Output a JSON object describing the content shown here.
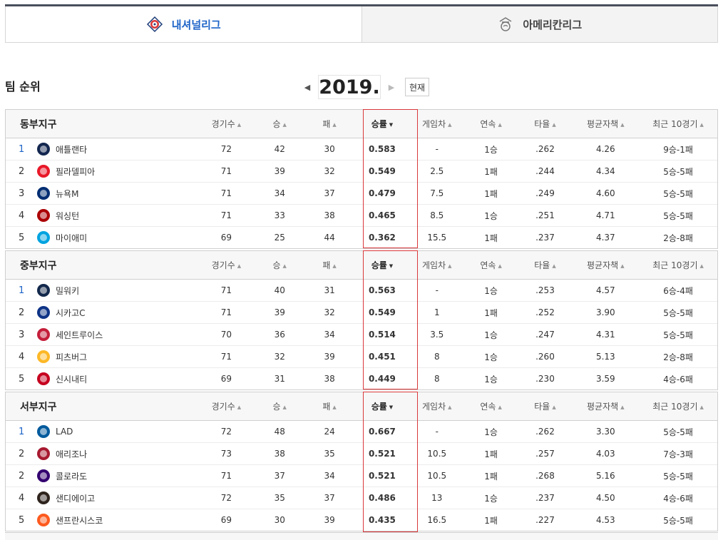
{
  "league_tabs": [
    {
      "label": "내셔널리그",
      "active": true,
      "icon": "national-league-logo-icon"
    },
    {
      "label": "아메리칸리그",
      "active": false,
      "icon": "american-league-logo-icon"
    }
  ],
  "section_title": "팀 순위",
  "year_nav": {
    "year": "2019.",
    "now_label": "현재"
  },
  "columns": [
    "경기수",
    "승",
    "패",
    "승률",
    "게임차",
    "연속",
    "타율",
    "평균자책",
    "최근 10경기"
  ],
  "accent": "#1e64c8",
  "highlight_color": "#d9383a",
  "divisions": [
    {
      "name": "동부지구",
      "teams": [
        {
          "rank": "1",
          "name": "애틀랜타",
          "logo": "braves-logo-icon",
          "color": "#13274f",
          "games": "72",
          "wins": "42",
          "losses": "30",
          "pct": "0.583",
          "gb": "-",
          "streak": "1승",
          "avg": ".262",
          "era": "4.26",
          "last10": "9승-1패"
        },
        {
          "rank": "2",
          "name": "필라델피아",
          "logo": "phillies-logo-icon",
          "color": "#e81828",
          "games": "71",
          "wins": "39",
          "losses": "32",
          "pct": "0.549",
          "gb": "2.5",
          "streak": "1패",
          "avg": ".244",
          "era": "4.34",
          "last10": "5승-5패"
        },
        {
          "rank": "3",
          "name": "뉴욕M",
          "logo": "mets-logo-icon",
          "color": "#002d72",
          "games": "71",
          "wins": "34",
          "losses": "37",
          "pct": "0.479",
          "gb": "7.5",
          "streak": "1패",
          "avg": ".249",
          "era": "4.60",
          "last10": "5승-5패"
        },
        {
          "rank": "4",
          "name": "워싱턴",
          "logo": "nationals-logo-icon",
          "color": "#ab0003",
          "games": "71",
          "wins": "33",
          "losses": "38",
          "pct": "0.465",
          "gb": "8.5",
          "streak": "1승",
          "avg": ".251",
          "era": "4.71",
          "last10": "5승-5패"
        },
        {
          "rank": "5",
          "name": "마이애미",
          "logo": "marlins-logo-icon",
          "color": "#00a3e0",
          "games": "69",
          "wins": "25",
          "losses": "44",
          "pct": "0.362",
          "gb": "15.5",
          "streak": "1패",
          "avg": ".237",
          "era": "4.37",
          "last10": "2승-8패"
        }
      ]
    },
    {
      "name": "중부지구",
      "teams": [
        {
          "rank": "1",
          "name": "밀워키",
          "logo": "brewers-logo-icon",
          "color": "#12284b",
          "games": "71",
          "wins": "40",
          "losses": "31",
          "pct": "0.563",
          "gb": "-",
          "streak": "1승",
          "avg": ".253",
          "era": "4.57",
          "last10": "6승-4패"
        },
        {
          "rank": "2",
          "name": "시카고C",
          "logo": "cubs-logo-icon",
          "color": "#0e3386",
          "games": "71",
          "wins": "39",
          "losses": "32",
          "pct": "0.549",
          "gb": "1",
          "streak": "1패",
          "avg": ".252",
          "era": "3.90",
          "last10": "5승-5패"
        },
        {
          "rank": "3",
          "name": "세인트루이스",
          "logo": "cardinals-logo-icon",
          "color": "#c41e3a",
          "games": "70",
          "wins": "36",
          "losses": "34",
          "pct": "0.514",
          "gb": "3.5",
          "streak": "1승",
          "avg": ".247",
          "era": "4.31",
          "last10": "5승-5패"
        },
        {
          "rank": "4",
          "name": "피츠버그",
          "logo": "pirates-logo-icon",
          "color": "#fdb827",
          "games": "71",
          "wins": "32",
          "losses": "39",
          "pct": "0.451",
          "gb": "8",
          "streak": "1승",
          "avg": ".260",
          "era": "5.13",
          "last10": "2승-8패"
        },
        {
          "rank": "5",
          "name": "신시내티",
          "logo": "reds-logo-icon",
          "color": "#c6011f",
          "games": "69",
          "wins": "31",
          "losses": "38",
          "pct": "0.449",
          "gb": "8",
          "streak": "1승",
          "avg": ".230",
          "era": "3.59",
          "last10": "4승-6패"
        }
      ]
    },
    {
      "name": "서부지구",
      "teams": [
        {
          "rank": "1",
          "name": "LAD",
          "logo": "dodgers-logo-icon",
          "color": "#005a9c",
          "games": "72",
          "wins": "48",
          "losses": "24",
          "pct": "0.667",
          "gb": "-",
          "streak": "1승",
          "avg": ".262",
          "era": "3.30",
          "last10": "5승-5패"
        },
        {
          "rank": "2",
          "name": "애리조나",
          "logo": "diamondbacks-logo-icon",
          "color": "#a71930",
          "games": "73",
          "wins": "38",
          "losses": "35",
          "pct": "0.521",
          "gb": "10.5",
          "streak": "1패",
          "avg": ".257",
          "era": "4.03",
          "last10": "7승-3패"
        },
        {
          "rank": "2",
          "name": "콜로라도",
          "logo": "rockies-logo-icon",
          "color": "#33006f",
          "games": "71",
          "wins": "37",
          "losses": "34",
          "pct": "0.521",
          "gb": "10.5",
          "streak": "1패",
          "avg": ".268",
          "era": "5.16",
          "last10": "5승-5패"
        },
        {
          "rank": "4",
          "name": "샌디에이고",
          "logo": "padres-logo-icon",
          "color": "#2f241d",
          "games": "72",
          "wins": "35",
          "losses": "37",
          "pct": "0.486",
          "gb": "13",
          "streak": "1승",
          "avg": ".237",
          "era": "4.50",
          "last10": "4승-6패"
        },
        {
          "rank": "5",
          "name": "샌프란시스코",
          "logo": "giants-logo-icon",
          "color": "#fd5a1e",
          "games": "69",
          "wins": "30",
          "losses": "39",
          "pct": "0.435",
          "gb": "16.5",
          "streak": "1패",
          "avg": ".227",
          "era": "4.53",
          "last10": "5승-5패"
        }
      ]
    }
  ]
}
